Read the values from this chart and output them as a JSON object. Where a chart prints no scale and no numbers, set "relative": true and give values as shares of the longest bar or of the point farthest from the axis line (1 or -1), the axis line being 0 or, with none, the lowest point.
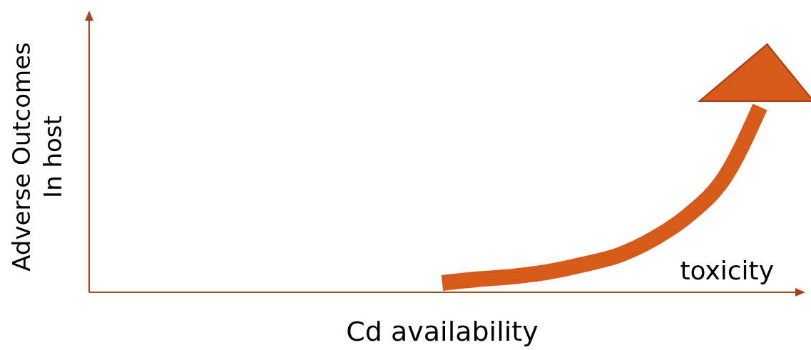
{
  "chart_data": {
    "type": "line",
    "relative": true,
    "xlabel": "Cd availability",
    "ylabel": "Adverse Outcomes\nIn host",
    "categories": [
      null,
      null,
      null,
      null,
      null,
      null,
      null,
      null,
      null,
      null,
      null,
      null,
      null,
      null,
      null,
      null,
      null,
      null,
      null,
      null,
      null
    ],
    "series": [
      {
        "color": "#d65b1a",
        "values": [
          null,
          null,
          null,
          null,
          null,
          null,
          null,
          null,
          null,
          null,
          0.05,
          0.07,
          0.085,
          0.11,
          0.15,
          0.2,
          0.29,
          0.42,
          0.62,
          1,
          null
        ]
      }
    ],
    "annotations": [
      "toxicity"
    ]
  }
}
